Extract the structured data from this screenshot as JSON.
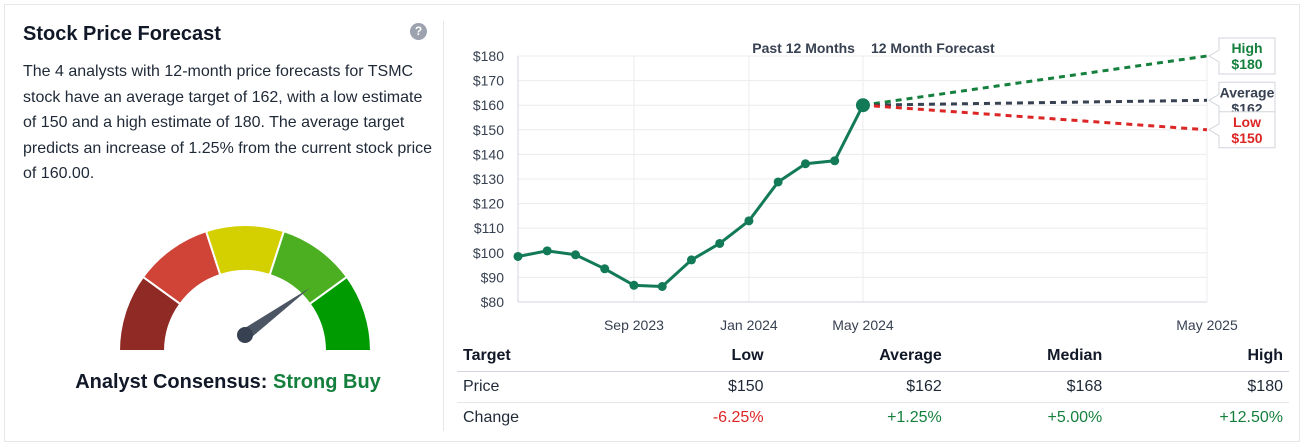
{
  "title": "Stock Price Forecast",
  "description": "The 4 analysts with 12-month price forecasts for TSMC stock have an average target of 162, with a low estimate of 150 and a high estimate of 180. The average target predicts an increase of 1.25% from the current stock price of 160.00.",
  "help_icon": "question-circle-icon",
  "consensus": {
    "label": "Analyst Consensus:",
    "value": "Strong Buy",
    "level": 0.8
  },
  "colors": {
    "past_line": "#127a57",
    "high": "#15803d",
    "average": "#374151",
    "low": "#dc2626",
    "gauge": [
      "#8f2a25",
      "#d04437",
      "#d4d000",
      "#4caf22",
      "#009b00"
    ]
  },
  "chart_data": {
    "type": "line",
    "headers": [
      "Past 12 Months",
      "12 Month Forecast"
    ],
    "y_ticks": [
      "$180",
      "$170",
      "$160",
      "$150",
      "$140",
      "$130",
      "$120",
      "$110",
      "$100",
      "$90",
      "$80"
    ],
    "ylim": [
      80,
      180
    ],
    "x_ticks": [
      "Sep 2023",
      "Jan 2024",
      "May 2024",
      "May 2025"
    ],
    "past": {
      "x": [
        "2023-05-23",
        "2023-06-23",
        "2023-07-23",
        "2023-08-23",
        "2023-09-23",
        "2023-10-23",
        "2023-11-23",
        "2023-12-23",
        "2024-01-23",
        "2024-02-23",
        "2024-03-23",
        "2024-04-23",
        "2024-05-23"
      ],
      "y": [
        98.5,
        100.8,
        99.2,
        93.5,
        86.8,
        86.3,
        97.1,
        103.8,
        113.0,
        128.8,
        136.2,
        137.4,
        160.0
      ]
    },
    "forecast": [
      {
        "name": "High",
        "label": "$180",
        "from": 160,
        "to": 180
      },
      {
        "name": "Average",
        "label": "$162",
        "from": 160,
        "to": 162
      },
      {
        "name": "Low",
        "label": "$150",
        "from": 160,
        "to": 150
      }
    ]
  },
  "table": {
    "headers": [
      "Target",
      "Low",
      "Average",
      "Median",
      "High"
    ],
    "rows": [
      {
        "label": "Price",
        "values": [
          "$150",
          "$162",
          "$168",
          "$180"
        ]
      },
      {
        "label": "Change",
        "values": [
          "-6.25%",
          "+1.25%",
          "+5.00%",
          "+12.50%"
        ]
      }
    ]
  }
}
